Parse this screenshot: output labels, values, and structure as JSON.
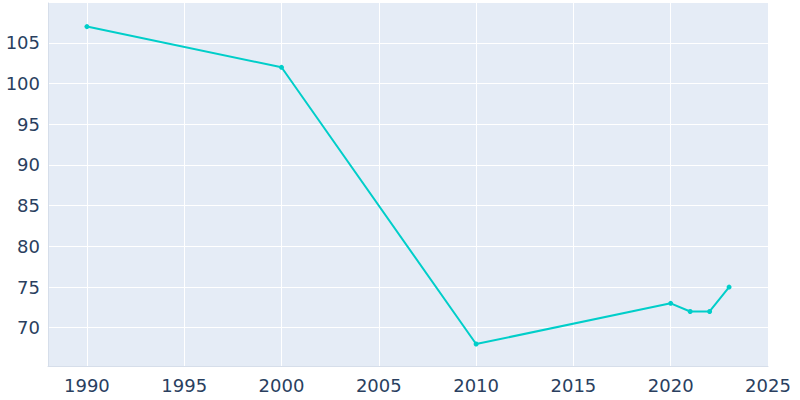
{
  "chart_data": {
    "type": "line",
    "x": [
      1990,
      2000,
      2010,
      2020,
      2021,
      2022,
      2023
    ],
    "values": [
      107,
      102,
      68,
      73,
      72,
      72,
      75
    ],
    "color": "#00cec9",
    "marker": "circle",
    "xlim": [
      1988,
      2025
    ],
    "xticks": [
      1990,
      1995,
      2000,
      2005,
      2010,
      2015,
      2020,
      2025
    ],
    "ylim": [
      65.3,
      109.9
    ],
    "yticks": [
      70,
      75,
      80,
      85,
      90,
      95,
      100,
      105
    ],
    "grid": true
  }
}
